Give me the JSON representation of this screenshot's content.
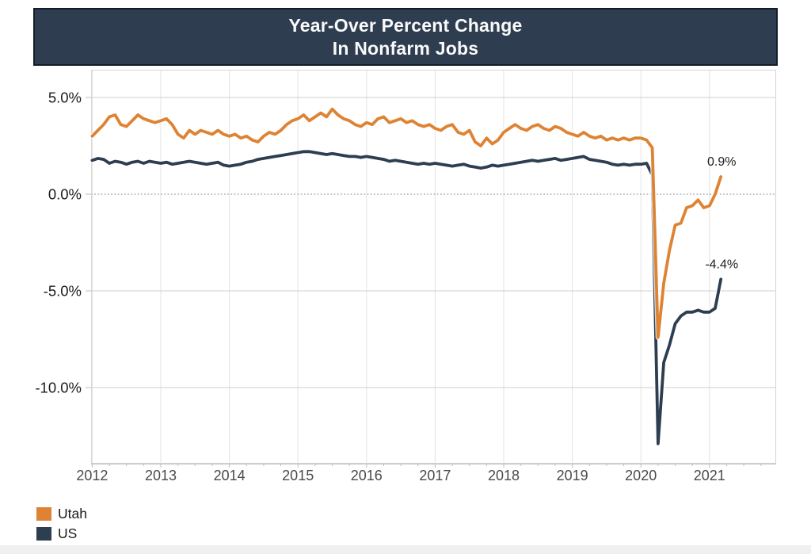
{
  "title": {
    "line1": "Year-Over Percent Change",
    "line2": "In Nonfarm Jobs"
  },
  "colors": {
    "banner_background": "#2E3D4F",
    "banner_border": "#141D27",
    "title_text": "#FAFAFA",
    "utah_line": "#DE8333",
    "us_line": "#2C3E50",
    "gridline_vertical": "#E3E3E3",
    "gridline_horizontal": "#CFCFCF",
    "zero_line": "#8A8A8A",
    "plot_border": "#D6D6D6",
    "axis_tick": "#BDBDBD",
    "x_label_text": "#4A4A4A",
    "y_label_text": "#1C1C1C",
    "annotation_text": "#1F1F1F"
  },
  "legend": {
    "items": [
      {
        "label": "Utah",
        "color": "#DE8333"
      },
      {
        "label": "US",
        "color": "#2C3E50"
      }
    ]
  },
  "chart_data": {
    "type": "line",
    "title": "Year-Over Percent Change In Nonfarm Jobs",
    "x_unit": "month",
    "x_start": "2012-01",
    "x_end": "2021-03",
    "x_tick_labels": [
      "2012",
      "2013",
      "2014",
      "2015",
      "2016",
      "2017",
      "2018",
      "2019",
      "2020",
      "2021"
    ],
    "y_tick_values": [
      5,
      0,
      -5,
      -10
    ],
    "y_tick_labels": [
      "5.0%",
      "0.0%",
      "-5.0%",
      "-10.0%"
    ],
    "ylim": [
      -13.9,
      6.4
    ],
    "grid": true,
    "zero_line_style": "dotted",
    "legend_position": "bottom-left",
    "series": [
      {
        "name": "Utah",
        "color": "#DE8333",
        "end_label": "0.9%",
        "values": [
          3.0,
          3.3,
          3.6,
          4.0,
          4.1,
          3.6,
          3.5,
          3.8,
          4.1,
          3.9,
          3.8,
          3.7,
          3.8,
          3.9,
          3.6,
          3.1,
          2.9,
          3.3,
          3.1,
          3.3,
          3.2,
          3.1,
          3.3,
          3.1,
          3.0,
          3.1,
          2.9,
          3.0,
          2.8,
          2.7,
          3.0,
          3.2,
          3.1,
          3.3,
          3.6,
          3.8,
          3.9,
          4.1,
          3.8,
          4.0,
          4.2,
          4.0,
          4.4,
          4.1,
          3.9,
          3.8,
          3.6,
          3.5,
          3.7,
          3.6,
          3.9,
          4.0,
          3.7,
          3.8,
          3.9,
          3.7,
          3.8,
          3.6,
          3.5,
          3.6,
          3.4,
          3.3,
          3.5,
          3.6,
          3.2,
          3.1,
          3.3,
          2.7,
          2.5,
          2.9,
          2.6,
          2.8,
          3.2,
          3.4,
          3.6,
          3.4,
          3.3,
          3.5,
          3.6,
          3.4,
          3.3,
          3.5,
          3.4,
          3.2,
          3.1,
          3.0,
          3.2,
          3.0,
          2.9,
          3.0,
          2.8,
          2.9,
          2.8,
          2.9,
          2.8,
          2.9,
          2.9,
          2.8,
          2.4,
          -7.4,
          -4.6,
          -2.9,
          -1.6,
          -1.5,
          -0.7,
          -0.6,
          -0.3,
          -0.7,
          -0.6,
          0.0,
          0.9
        ]
      },
      {
        "name": "US",
        "color": "#2C3E50",
        "end_label": "-4.4%",
        "values": [
          1.75,
          1.85,
          1.8,
          1.6,
          1.7,
          1.65,
          1.55,
          1.65,
          1.7,
          1.6,
          1.7,
          1.65,
          1.6,
          1.65,
          1.55,
          1.6,
          1.65,
          1.7,
          1.65,
          1.6,
          1.55,
          1.6,
          1.65,
          1.5,
          1.45,
          1.5,
          1.55,
          1.65,
          1.7,
          1.8,
          1.85,
          1.9,
          1.95,
          2.0,
          2.05,
          2.1,
          2.15,
          2.2,
          2.2,
          2.15,
          2.1,
          2.05,
          2.1,
          2.05,
          2.0,
          1.95,
          1.95,
          1.9,
          1.95,
          1.9,
          1.85,
          1.8,
          1.7,
          1.75,
          1.7,
          1.65,
          1.6,
          1.55,
          1.6,
          1.55,
          1.6,
          1.55,
          1.5,
          1.45,
          1.5,
          1.55,
          1.45,
          1.4,
          1.35,
          1.4,
          1.5,
          1.45,
          1.5,
          1.55,
          1.6,
          1.65,
          1.7,
          1.75,
          1.7,
          1.75,
          1.8,
          1.85,
          1.75,
          1.8,
          1.85,
          1.9,
          1.95,
          1.8,
          1.75,
          1.7,
          1.65,
          1.55,
          1.5,
          1.55,
          1.5,
          1.55,
          1.55,
          1.6,
          1.0,
          -12.9,
          -8.7,
          -7.8,
          -6.7,
          -6.3,
          -6.1,
          -6.1,
          -6.0,
          -6.1,
          -6.1,
          -5.9,
          -4.4
        ]
      }
    ]
  }
}
